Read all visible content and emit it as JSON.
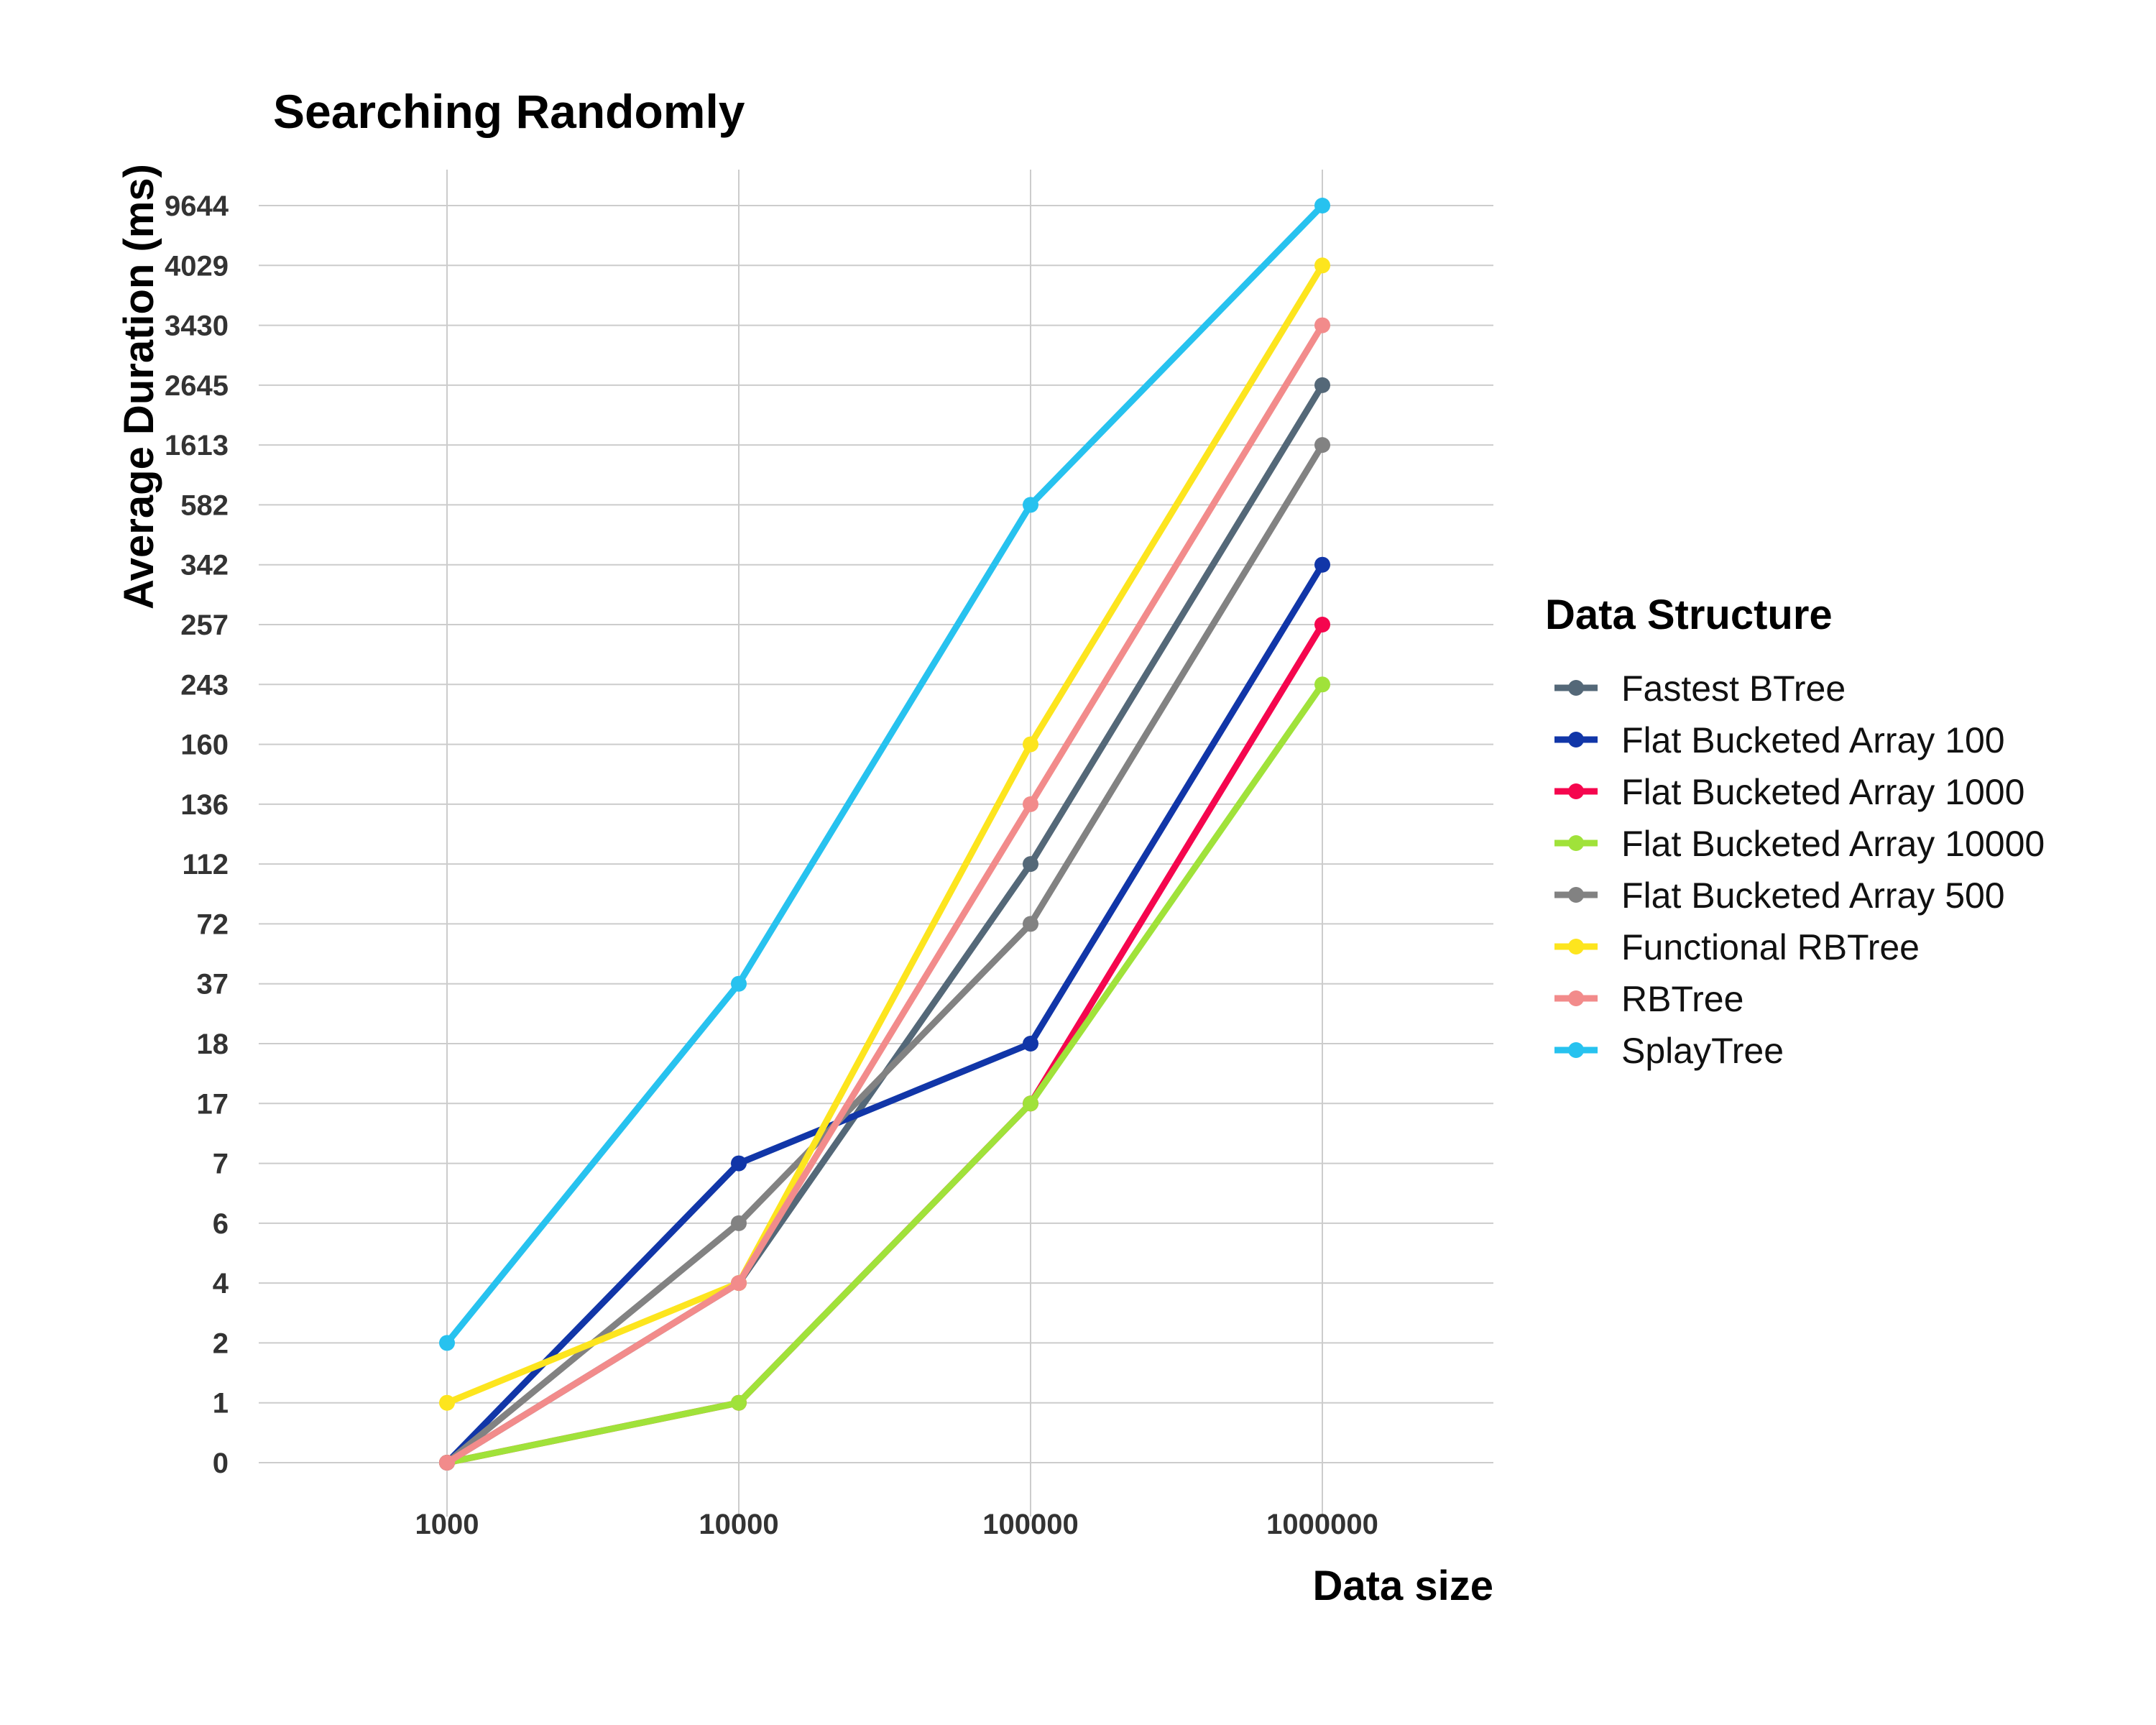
{
  "chart_data": {
    "type": "line",
    "title": "Searching Randomly",
    "xlabel": "Data size",
    "ylabel": "Average Duration (ms)",
    "x": [
      "1000",
      "10000",
      "100000",
      "1000000"
    ],
    "y_ticks": [
      "0",
      "1",
      "2",
      "4",
      "6",
      "7",
      "17",
      "18",
      "37",
      "72",
      "112",
      "136",
      "160",
      "243",
      "257",
      "342",
      "582",
      "1613",
      "2645",
      "3430",
      "4029",
      "9644"
    ],
    "y_scale": "categorical (ordered tick labels, evenly spaced)",
    "grid": true,
    "legend": {
      "title": "Data Structure",
      "position": "right"
    },
    "series": [
      {
        "name": "Fastest BTree",
        "color": "#546878",
        "values": [
          0,
          4,
          112,
          2645
        ]
      },
      {
        "name": "Flat Bucketed Array 100",
        "color": "#1136a8",
        "values": [
          0,
          7,
          18,
          342
        ]
      },
      {
        "name": "Flat Bucketed Array 1000",
        "color": "#f5064e",
        "values": [
          0,
          1,
          17,
          257
        ]
      },
      {
        "name": "Flat Bucketed Array 10000",
        "color": "#a0e23a",
        "values": [
          0,
          1,
          17,
          243
        ]
      },
      {
        "name": "Flat Bucketed Array 500",
        "color": "#828282",
        "values": [
          0,
          6,
          72,
          1613
        ]
      },
      {
        "name": "Functional RBTree",
        "color": "#fde51e",
        "values": [
          1,
          4,
          160,
          4029
        ]
      },
      {
        "name": "RBTree",
        "color": "#f28b8b",
        "values": [
          0,
          4,
          136,
          3430
        ]
      },
      {
        "name": "SplayTree",
        "color": "#27c2ef",
        "values": [
          2,
          37,
          582,
          9644
        ]
      }
    ]
  }
}
